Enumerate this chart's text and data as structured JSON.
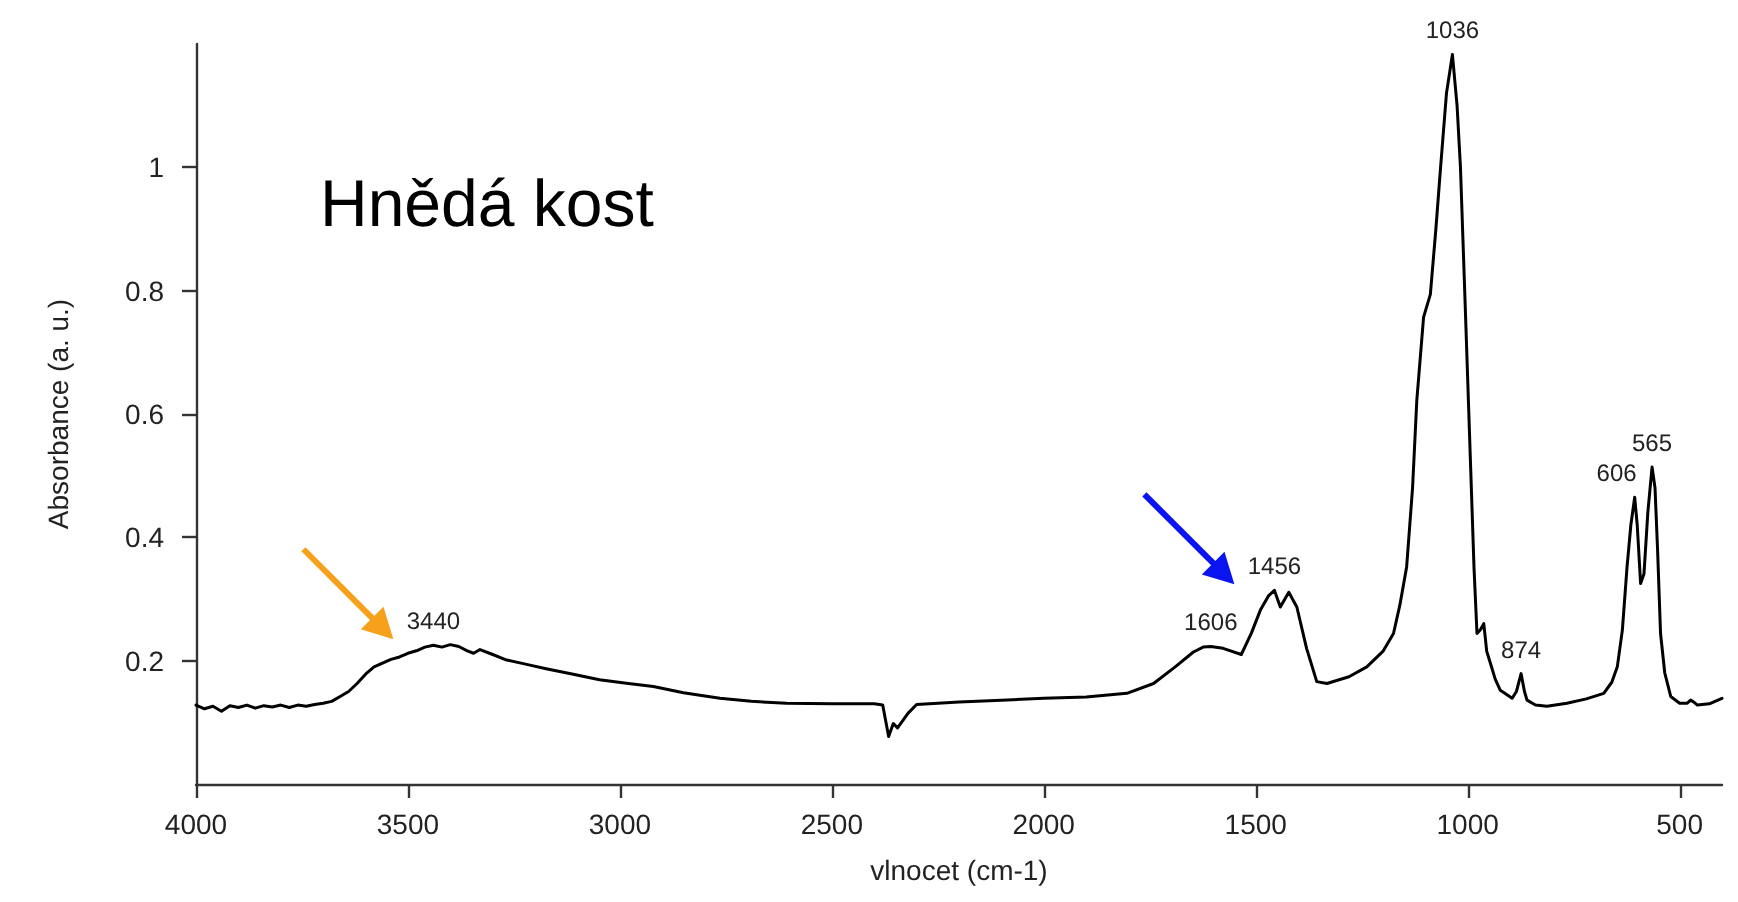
{
  "chart_data": {
    "type": "line",
    "title": "Hnědá kost",
    "xlabel": "vlnocet (cm-1)",
    "ylabel": "Absorbance (a. u.)",
    "x": [
      4000,
      3980,
      3960,
      3940,
      3920,
      3900,
      3880,
      3860,
      3840,
      3820,
      3800,
      3780,
      3760,
      3740,
      3720,
      3700,
      3680,
      3660,
      3640,
      3620,
      3600,
      3580,
      3560,
      3540,
      3520,
      3500,
      3480,
      3460,
      3440,
      3420,
      3400,
      3380,
      3360,
      3345,
      3330,
      3300,
      3267,
      3220,
      3174,
      3110,
      3048,
      2980,
      2921,
      2850,
      2764,
      2690,
      2607,
      2500,
      2400,
      2380,
      2366,
      2355,
      2345,
      2320,
      2300,
      2200,
      2100,
      2000,
      1900,
      1804,
      1741,
      1690,
      1647,
      1624,
      1606,
      1577,
      1534,
      1510,
      1489,
      1470,
      1456,
      1442,
      1422,
      1403,
      1380,
      1356,
      1332,
      1280,
      1238,
      1200,
      1175,
      1160,
      1144,
      1130,
      1120,
      1104,
      1088,
      1075,
      1064,
      1050,
      1036,
      1025,
      1017,
      1005,
      993,
      985,
      978,
      970,
      962,
      955,
      946,
      935,
      923,
      895,
      885,
      874,
      866,
      860,
      840,
      813,
      766,
      720,
      679,
      660,
      647,
      635,
      624,
      615,
      606,
      600,
      592,
      584,
      575,
      565,
      558,
      552,
      545,
      535,
      521,
      500,
      482,
      474,
      465,
      458,
      430,
      400
    ],
    "values": [
      0.128,
      0.122,
      0.126,
      0.118,
      0.127,
      0.124,
      0.128,
      0.123,
      0.127,
      0.125,
      0.128,
      0.124,
      0.128,
      0.126,
      0.129,
      0.131,
      0.134,
      0.142,
      0.15,
      0.163,
      0.178,
      0.19,
      0.196,
      0.202,
      0.206,
      0.212,
      0.216,
      0.222,
      0.225,
      0.222,
      0.226,
      0.223,
      0.216,
      0.212,
      0.218,
      0.21,
      0.201,
      0.194,
      0.187,
      0.178,
      0.169,
      0.163,
      0.158,
      0.148,
      0.139,
      0.134,
      0.131,
      0.13,
      0.13,
      0.128,
      0.077,
      0.098,
      0.091,
      0.115,
      0.129,
      0.133,
      0.136,
      0.139,
      0.141,
      0.147,
      0.163,
      0.19,
      0.214,
      0.222,
      0.223,
      0.22,
      0.21,
      0.245,
      0.282,
      0.305,
      0.314,
      0.287,
      0.311,
      0.287,
      0.22,
      0.166,
      0.163,
      0.174,
      0.19,
      0.215,
      0.244,
      0.29,
      0.352,
      0.48,
      0.622,
      0.757,
      0.794,
      0.9,
      0.999,
      1.12,
      1.183,
      1.1,
      1.0,
      0.76,
      0.514,
      0.35,
      0.244,
      0.25,
      0.26,
      0.215,
      0.195,
      0.17,
      0.152,
      0.139,
      0.15,
      0.179,
      0.15,
      0.136,
      0.128,
      0.126,
      0.131,
      0.138,
      0.147,
      0.165,
      0.19,
      0.25,
      0.352,
      0.42,
      0.465,
      0.42,
      0.325,
      0.341,
      0.44,
      0.514,
      0.48,
      0.38,
      0.244,
      0.18,
      0.142,
      0.131,
      0.131,
      0.136,
      0.132,
      0.128,
      0.13,
      0.139
    ],
    "color": "#000000",
    "marker": "none",
    "line_style": "solid",
    "xlim": [
      4000,
      400
    ],
    "xticks": [
      4000,
      3500,
      3000,
      2500,
      2000,
      1500,
      1000,
      500
    ],
    "ylim": [
      0,
      1.2
    ],
    "yticks": [
      0.2,
      0.4,
      0.6,
      0.8,
      1
    ],
    "annotations": [
      {
        "text": "3440",
        "x": 3440,
        "y": 0.225
      },
      {
        "text": "1606",
        "x": 1606,
        "y": 0.223
      },
      {
        "text": "1456",
        "x": 1456,
        "y": 0.314
      },
      {
        "text": "1036",
        "x": 1036,
        "y": 1.183
      },
      {
        "text": "874",
        "x": 874,
        "y": 0.179
      },
      {
        "text": "606",
        "x": 606,
        "y": 0.465
      },
      {
        "text": "565",
        "x": 565,
        "y": 0.514
      }
    ]
  }
}
